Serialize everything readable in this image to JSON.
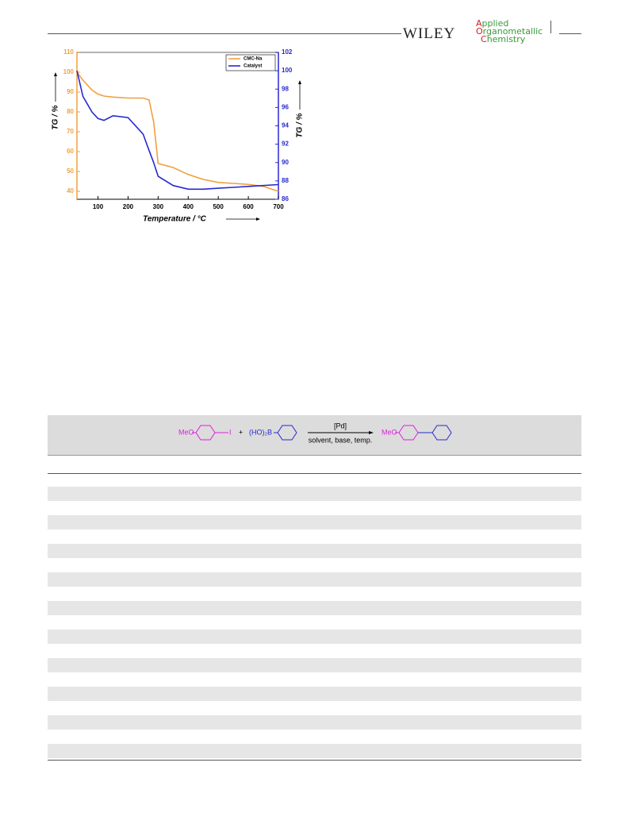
{
  "header": {
    "publisher": "WILEY",
    "journal": [
      "Applied",
      "Organometallic",
      "Chemistry"
    ]
  },
  "chart_data": {
    "type": "line",
    "x_label": "Temperature / °C",
    "y_label": "TG / %",
    "y2_label": "TG / %",
    "x": [
      30,
      50,
      80,
      100,
      120,
      150,
      200,
      250,
      270,
      285,
      300,
      350,
      400,
      450,
      500,
      550,
      600,
      650,
      700
    ],
    "series": [
      {
        "name": "CMC-Na",
        "color": "#f0a040",
        "values": [
          100,
          96,
          91,
          89,
          88,
          87.5,
          87,
          87,
          86,
          75,
          54,
          52,
          48.5,
          46,
          44.5,
          44,
          43.5,
          42.5,
          40
        ]
      },
      {
        "name": "Catalyst",
        "color": "#2828d0",
        "axis": "y2",
        "values": [
          100,
          97.2,
          95.5,
          94.8,
          94.6,
          95.1,
          94.9,
          93.1,
          91.3,
          90,
          88.5,
          87.5,
          87.1,
          87.1,
          87.2,
          87.3,
          87.4,
          87.5,
          87.6
        ]
      }
    ],
    "xlim": [
      30,
      700
    ],
    "xticks": [
      100,
      200,
      300,
      400,
      500,
      600,
      700
    ],
    "ylim": [
      36,
      110
    ],
    "yticks": [
      40,
      50,
      60,
      70,
      80,
      90,
      100,
      110
    ],
    "y2lim": [
      86,
      102
    ],
    "y2ticks": [
      86,
      88,
      90,
      92,
      94,
      96,
      98,
      100,
      102
    ],
    "legend": "top-right",
    "grid": false
  },
  "table": {
    "scheme": {
      "reactant1_group": "MeO",
      "reactant1_leaving": "I",
      "plus": "+",
      "reactant2_group": "(HO)₂B",
      "catalyst": "[Pd]",
      "conditions": "solvent, base, temp.",
      "product_group": "MeO"
    }
  }
}
